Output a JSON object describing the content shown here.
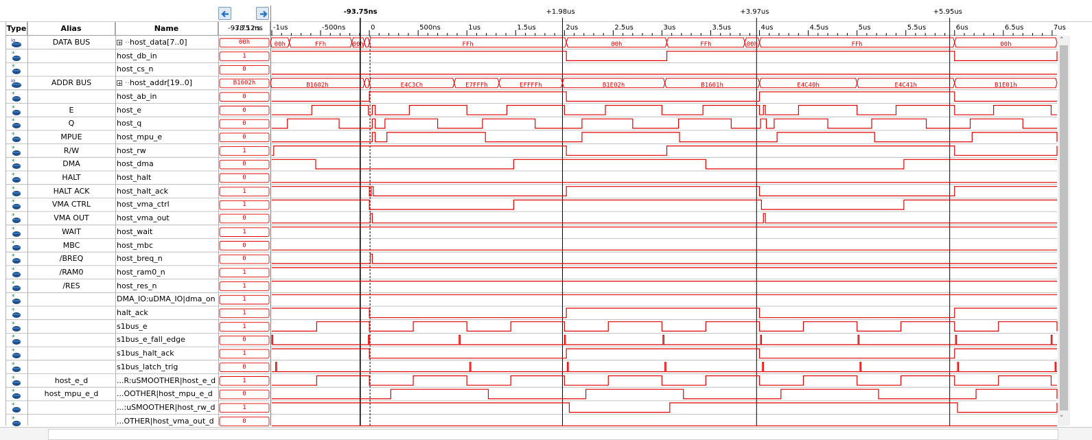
{
  "toolbar": {
    "nav_back_icon": "arrow-left-icon",
    "nav_forward_icon": "arrow-right-icon"
  },
  "headers": {
    "type": "Type",
    "alias": "Alias",
    "name": "Name",
    "value": "-93.75 ns",
    "value_overlap": "-78.12ns"
  },
  "timebar": {
    "cursors": [
      {
        "label": "-93.75ns",
        "time_ns": -93.75
      },
      {
        "label": "+1.98us",
        "time_ns": 1980
      },
      {
        "label": "+3.97us",
        "time_ns": 3970
      },
      {
        "label": "+5.95us",
        "time_ns": 5950
      }
    ],
    "ticks": [
      "-1us",
      "-500ns",
      "0",
      "500ns",
      "1us",
      "1.5us",
      "2us",
      "2.5us",
      "3us",
      "3.5us",
      "4us",
      "4.5us",
      "5us",
      "5.5us",
      "6us",
      "6.5us",
      "7us"
    ],
    "range_ns": [
      -1000,
      7050
    ]
  },
  "colors": {
    "wave": "#e00000",
    "grid": "#b0b0b0",
    "cursor": "#000000",
    "header_bg": "#ffffff"
  },
  "signals": [
    {
      "type": "bus-io-icon",
      "alias": "DATA BUS",
      "name": "host_data[7..0]",
      "expand": true,
      "value": "00h",
      "bus": [
        [
          -1000,
          -820,
          "00h"
        ],
        [
          -820,
          -180,
          "FFh"
        ],
        [
          -180,
          -50,
          "00h"
        ],
        [
          -50,
          0,
          ""
        ],
        [
          0,
          2020,
          "FFh"
        ],
        [
          2020,
          3050,
          "00h"
        ],
        [
          3050,
          3850,
          "FFh"
        ],
        [
          3850,
          4000,
          "00h"
        ],
        [
          4000,
          6000,
          "FFh"
        ],
        [
          6000,
          7050,
          "00h"
        ]
      ]
    },
    {
      "type": "input-icon",
      "alias": "",
      "name": "host_db_in",
      "value": "1",
      "wave": [
        [
          -1000,
          1
        ],
        [
          2020,
          0
        ],
        [
          3050,
          1
        ],
        [
          6000,
          0
        ],
        [
          7050,
          1
        ]
      ]
    },
    {
      "type": "input-icon",
      "alias": "",
      "name": "host_cs_n",
      "value": "0",
      "wave": [
        [
          -1000,
          0
        ]
      ]
    },
    {
      "type": "bus-io-icon",
      "alias": "ADDR BUS",
      "name": "host_addr[19..0]",
      "expand": true,
      "value": "B1602h",
      "bus": [
        [
          -1000,
          -50,
          "B1602h"
        ],
        [
          -50,
          0,
          ""
        ],
        [
          0,
          870,
          "E4C3Ch"
        ],
        [
          870,
          1330,
          "E7FFFh"
        ],
        [
          1330,
          1980,
          "EFFFFh"
        ],
        [
          1980,
          3030,
          "B1E02h"
        ],
        [
          3030,
          4000,
          "B1601h"
        ],
        [
          4000,
          5000,
          "E4C40h"
        ],
        [
          5000,
          6000,
          "E4C41h"
        ],
        [
          6000,
          7050,
          "B1E01h"
        ]
      ]
    },
    {
      "type": "input-icon",
      "alias": "",
      "name": "host_ab_in",
      "value": "0",
      "wave": [
        [
          -1000,
          0
        ],
        [
          0,
          1
        ],
        [
          2020,
          0
        ],
        [
          4000,
          1
        ],
        [
          6000,
          0
        ]
      ]
    },
    {
      "type": "input-icon",
      "alias": "E",
      "name": "host_e",
      "value": "0",
      "wave": [
        [
          -1000,
          0
        ],
        [
          -590,
          1
        ],
        [
          -10,
          0
        ],
        [
          30,
          1
        ],
        [
          60,
          0
        ],
        [
          410,
          1
        ],
        [
          1000,
          0
        ],
        [
          1410,
          1
        ],
        [
          2000,
          0
        ],
        [
          2420,
          1
        ],
        [
          3000,
          0
        ],
        [
          3420,
          1
        ],
        [
          4000,
          0
        ],
        [
          4040,
          1
        ],
        [
          4060,
          0
        ],
        [
          4400,
          1
        ],
        [
          5000,
          0
        ],
        [
          5400,
          1
        ],
        [
          6000,
          0
        ],
        [
          6400,
          1
        ],
        [
          6990,
          0
        ]
      ]
    },
    {
      "type": "input-icon",
      "alias": "Q",
      "name": "host_q",
      "value": "0",
      "wave": [
        [
          -1000,
          0
        ],
        [
          -840,
          1
        ],
        [
          -310,
          0
        ],
        [
          30,
          1
        ],
        [
          60,
          0
        ],
        [
          160,
          1
        ],
        [
          700,
          0
        ],
        [
          1160,
          1
        ],
        [
          1700,
          0
        ],
        [
          2180,
          1
        ],
        [
          2700,
          0
        ],
        [
          3170,
          1
        ],
        [
          3710,
          0
        ],
        [
          4010,
          1
        ],
        [
          4070,
          0
        ],
        [
          4150,
          1
        ],
        [
          4700,
          0
        ],
        [
          5150,
          1
        ],
        [
          5710,
          0
        ],
        [
          6160,
          1
        ],
        [
          6700,
          0
        ]
      ]
    },
    {
      "type": "input-icon",
      "alias": "MPUE",
      "name": "host_mpu_e",
      "value": "0",
      "wave": [
        [
          -1000,
          0
        ],
        [
          30,
          1
        ],
        [
          60,
          0
        ],
        [
          180,
          1
        ],
        [
          1190,
          0
        ],
        [
          2180,
          1
        ],
        [
          3180,
          0
        ],
        [
          4180,
          1
        ],
        [
          5180,
          0
        ],
        [
          6180,
          1
        ],
        [
          7050,
          0
        ]
      ]
    },
    {
      "type": "input-icon",
      "alias": "R/W",
      "name": "host_rw",
      "value": "1",
      "wave": [
        [
          -1000,
          0
        ],
        [
          -980,
          1
        ],
        [
          2020,
          0
        ],
        [
          3050,
          1
        ],
        [
          6000,
          0
        ],
        [
          7050,
          1
        ]
      ]
    },
    {
      "type": "input-icon",
      "alias": "DMA",
      "name": "host_dma",
      "value": "0",
      "wave": [
        [
          -1000,
          1
        ],
        [
          -550,
          0
        ],
        [
          1480,
          1
        ],
        [
          3450,
          0
        ],
        [
          5480,
          1
        ]
      ]
    },
    {
      "type": "input-icon",
      "alias": "HALT",
      "name": "host_halt",
      "value": "0",
      "wave": [
        [
          -1000,
          0
        ]
      ]
    },
    {
      "type": "input-icon",
      "alias": "HALT ACK",
      "name": "host_halt_ack",
      "value": "1",
      "wave": [
        [
          -1000,
          1
        ],
        [
          0,
          0
        ],
        [
          20,
          1
        ],
        [
          40,
          0
        ],
        [
          2020,
          1
        ],
        [
          4000,
          0
        ],
        [
          6000,
          1
        ]
      ]
    },
    {
      "type": "input-icon",
      "alias": "VMA CTRL",
      "name": "host_vma_ctrl",
      "value": "1",
      "wave": [
        [
          -1000,
          1
        ],
        [
          0,
          0
        ],
        [
          1480,
          1
        ],
        [
          4020,
          0
        ],
        [
          5480,
          1
        ]
      ]
    },
    {
      "type": "input-icon",
      "alias": "VMA OUT",
      "name": "host_vma_out",
      "value": "0",
      "wave": [
        [
          -1000,
          0
        ],
        [
          10,
          1
        ],
        [
          30,
          0
        ],
        [
          4040,
          1
        ],
        [
          4060,
          0
        ]
      ]
    },
    {
      "type": "input-icon",
      "alias": "WAIT",
      "name": "host_wait",
      "value": "1",
      "wave": [
        [
          -1000,
          1
        ]
      ]
    },
    {
      "type": "input-icon",
      "alias": "MBC",
      "name": "host_mbc",
      "value": "0",
      "wave": [
        [
          -1000,
          0
        ]
      ]
    },
    {
      "type": "input-icon",
      "alias": "/BREQ",
      "name": "host_breq_n",
      "value": "0",
      "wave": [
        [
          -1000,
          0
        ],
        [
          10,
          1
        ],
        [
          30,
          0
        ]
      ]
    },
    {
      "type": "input-icon",
      "alias": "/RAM0",
      "name": "host_ram0_n",
      "value": "1",
      "wave": [
        [
          -1000,
          1
        ]
      ]
    },
    {
      "type": "input-icon",
      "alias": "/RES",
      "name": "host_res_n",
      "value": "1",
      "wave": [
        [
          -1000,
          1
        ]
      ]
    },
    {
      "type": "input-icon",
      "alias": "",
      "name": "DMA_IO:uDMA_IO|dma_on",
      "value": "1",
      "wave": [
        [
          -1000,
          1
        ]
      ]
    },
    {
      "type": "input-icon",
      "alias": "",
      "name": "halt_ack",
      "value": "1",
      "wave": [
        [
          -1000,
          1
        ],
        [
          0,
          0
        ],
        [
          2020,
          1
        ],
        [
          4000,
          0
        ],
        [
          6000,
          1
        ]
      ]
    },
    {
      "type": "input-icon",
      "alias": "",
      "name": "s1bus_e",
      "value": "1",
      "wave": [
        [
          -1000,
          0
        ],
        [
          -540,
          1
        ],
        [
          0,
          0
        ],
        [
          450,
          1
        ],
        [
          1000,
          0
        ],
        [
          1450,
          1
        ],
        [
          2000,
          0
        ],
        [
          2450,
          1
        ],
        [
          3000,
          0
        ],
        [
          3450,
          1
        ],
        [
          4000,
          0
        ],
        [
          4450,
          1
        ],
        [
          5000,
          0
        ],
        [
          5450,
          1
        ],
        [
          6000,
          0
        ],
        [
          6450,
          1
        ],
        [
          7050,
          0
        ]
      ]
    },
    {
      "type": "input-icon",
      "alias": "",
      "name": "s1bus_e_fall_edge",
      "value": "0",
      "pulses": [
        -1000,
        -10,
        920,
        2000,
        3010,
        4010,
        5010,
        6010,
        6990
      ]
    },
    {
      "type": "input-icon",
      "alias": "",
      "name": "s1bus_halt_ack",
      "value": "1",
      "wave": [
        [
          -1000,
          1
        ],
        [
          0,
          0
        ],
        [
          2020,
          1
        ],
        [
          4000,
          0
        ],
        [
          6000,
          1
        ]
      ]
    },
    {
      "type": "input-icon",
      "alias": "",
      "name": "s1bus_latch_trig",
      "value": "0",
      "pulses": [
        -960,
        1030,
        2030,
        3030,
        4030,
        5030,
        6030,
        7030
      ]
    },
    {
      "type": "input-icon",
      "alias": "host_e_d",
      "name": "...R:uSMOOTHER|host_e_d",
      "value": "1",
      "wave": [
        [
          -1000,
          0
        ],
        [
          -540,
          1
        ],
        [
          0,
          0
        ],
        [
          450,
          1
        ],
        [
          1000,
          0
        ],
        [
          1450,
          1
        ],
        [
          2000,
          0
        ],
        [
          2450,
          1
        ],
        [
          3000,
          0
        ],
        [
          3450,
          1
        ],
        [
          4000,
          0
        ],
        [
          4450,
          1
        ],
        [
          5000,
          0
        ],
        [
          5450,
          1
        ],
        [
          6000,
          0
        ],
        [
          6450,
          1
        ],
        [
          6990,
          0
        ]
      ]
    },
    {
      "type": "input-icon",
      "alias": "host_mpu_e_d",
      "name": "...OOTHER|host_mpu_e_d",
      "value": "0",
      "wave": [
        [
          -1000,
          0
        ],
        [
          220,
          1
        ],
        [
          1220,
          0
        ],
        [
          2220,
          1
        ],
        [
          3220,
          0
        ],
        [
          4220,
          1
        ],
        [
          5220,
          0
        ],
        [
          6220,
          1
        ],
        [
          7050,
          0
        ]
      ]
    },
    {
      "type": "input-icon",
      "alias": "",
      "name": "...:uSMOOTHER|host_rw_d",
      "value": "1",
      "wave": [
        [
          -1000,
          1
        ],
        [
          2050,
          0
        ],
        [
          3080,
          1
        ],
        [
          6030,
          0
        ],
        [
          7050,
          1
        ]
      ]
    },
    {
      "type": "input-icon",
      "alias": "",
      "name": "...OTHER|host_vma_out_d",
      "value": "0",
      "wave": [
        [
          -1000,
          0
        ]
      ]
    }
  ]
}
